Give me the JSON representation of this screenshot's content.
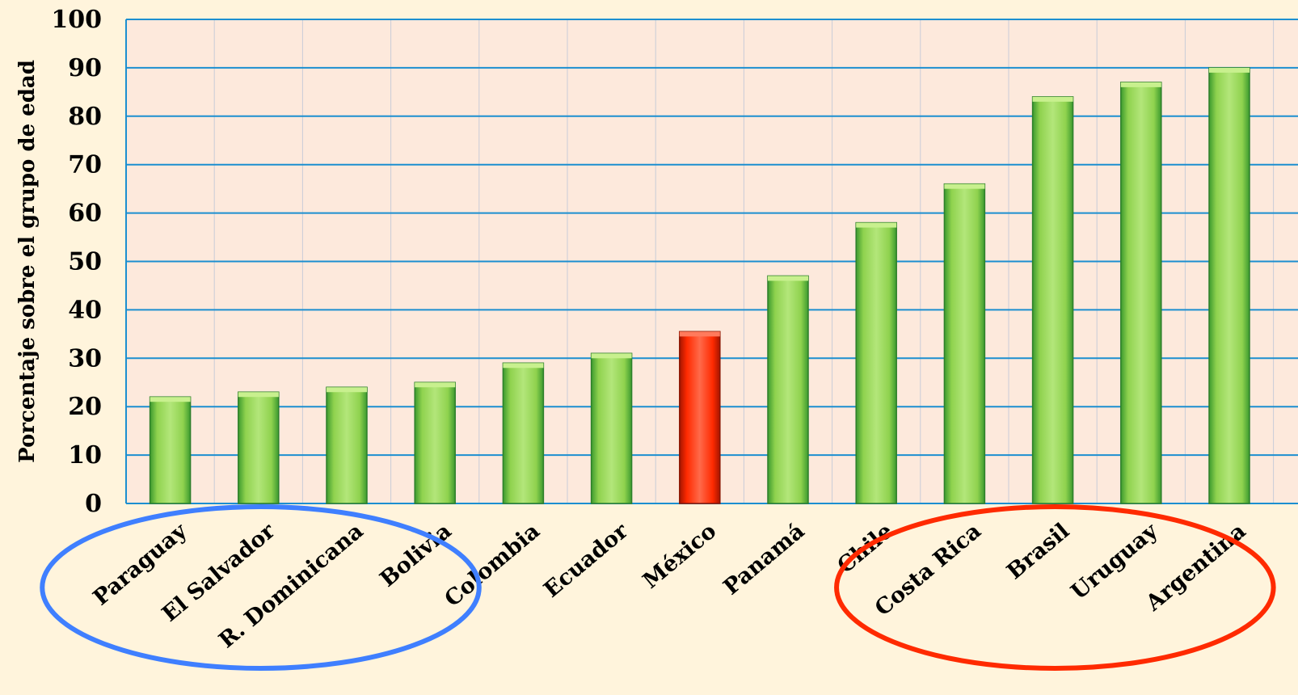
{
  "chart_data": {
    "type": "bar",
    "title": "",
    "xlabel": "",
    "ylabel": "Porcentaje sobre el grupo de edad",
    "ylim": [
      0,
      100
    ],
    "yticks": [
      0,
      10,
      20,
      30,
      40,
      50,
      60,
      70,
      80,
      90,
      100
    ],
    "grid": true,
    "legend": "none",
    "categories": [
      "Paraguay",
      "El Salvador",
      "R. Dominicana",
      "Bolivia",
      "Colombia",
      "Ecuador",
      "México",
      "Panamá",
      "Chile",
      "Costa Rica",
      "Brasil",
      "Uruguay",
      "Argentina"
    ],
    "values": [
      22,
      23,
      24,
      25,
      29,
      31,
      35.5,
      47,
      58,
      66,
      84,
      87,
      90
    ],
    "highlight_category": "México",
    "colors": {
      "bar": "#8fd24e",
      "bar_highlight": "#ff2a00",
      "plot_bg": "#fde9dc",
      "page_bg": "#fff4dc",
      "grid_major": "#1c8fd0",
      "grid_minor": "#c9ccd8",
      "circle_left": "#3f7fff",
      "circle_right": "#ff2a00"
    },
    "annotations": [
      {
        "type": "ellipse",
        "color": "circle_left",
        "encloses": [
          "Paraguay",
          "El Salvador",
          "R. Dominicana",
          "Bolivia"
        ]
      },
      {
        "type": "ellipse",
        "color": "circle_right",
        "encloses": [
          "Costa Rica",
          "Brasil",
          "Uruguay",
          "Argentina"
        ]
      }
    ]
  }
}
